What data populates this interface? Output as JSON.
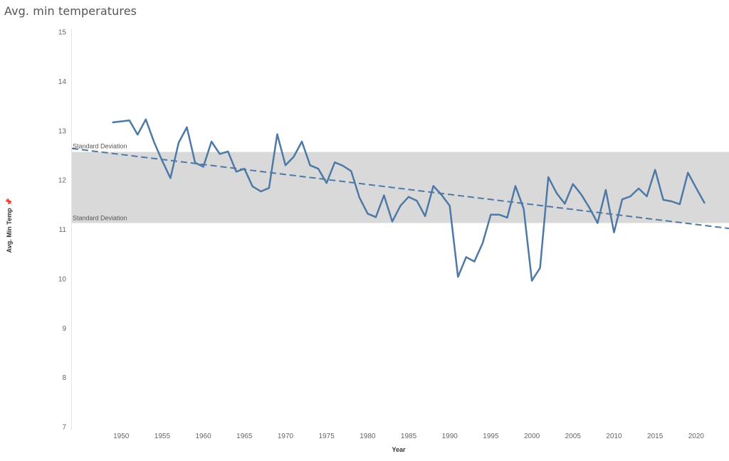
{
  "title": "Avg. min temperatures",
  "chart_data": {
    "type": "line",
    "title": "Avg. min temperatures",
    "xlabel": "Year",
    "ylabel": "Avg. Min Temp",
    "xlim": [
      1944,
      2024
    ],
    "ylim": [
      7,
      15
    ],
    "x_ticks": [
      "1950",
      "1955",
      "1960",
      "1965",
      "1970",
      "1975",
      "1980",
      "1985",
      "1990",
      "1995",
      "2000",
      "2005",
      "2010",
      "2015",
      "2020"
    ],
    "y_ticks": [
      "7",
      "8",
      "9",
      "10",
      "11",
      "12",
      "13",
      "14",
      "15"
    ],
    "grid": false,
    "series": [
      {
        "type": "line",
        "color": "#4e79a7",
        "x": [
          1949,
          1950,
          1951,
          1952,
          1953,
          1954,
          1955,
          1956,
          1957,
          1958,
          1959,
          1960,
          1961,
          1962,
          1963,
          1964,
          1965,
          1966,
          1967,
          1968,
          1969,
          1970,
          1971,
          1972,
          1973,
          1974,
          1975,
          1976,
          1977,
          1978,
          1979,
          1980,
          1981,
          1982,
          1983,
          1984,
          1985,
          1986,
          1987,
          1988,
          1989,
          1990,
          1991,
          1992,
          1993,
          1994,
          1995,
          1996,
          1997,
          1998,
          1999,
          2000,
          2001,
          2002,
          2003,
          2004,
          2005,
          2006,
          2007,
          2008,
          2009,
          2010,
          2011,
          2012,
          2013,
          2014,
          2015,
          2016,
          2017,
          2018,
          2019,
          2020,
          2021
        ],
        "values": [
          13.17,
          13.19,
          13.21,
          12.92,
          13.23,
          12.77,
          12.39,
          12.04,
          12.76,
          13.07,
          12.35,
          12.27,
          12.78,
          12.53,
          12.58,
          12.17,
          12.23,
          11.87,
          11.77,
          11.84,
          12.93,
          12.3,
          12.47,
          12.78,
          12.3,
          12.23,
          11.94,
          12.36,
          12.29,
          12.18,
          11.65,
          11.32,
          11.25,
          11.69,
          11.16,
          11.48,
          11.66,
          11.58,
          11.27,
          11.88,
          11.7,
          11.48,
          10.04,
          10.44,
          10.35,
          10.72,
          11.3,
          11.3,
          11.24,
          11.88,
          11.42,
          9.96,
          10.22,
          12.06,
          11.74,
          11.52,
          11.92,
          11.71,
          11.44,
          11.13,
          11.8,
          10.94,
          11.61,
          11.67,
          11.83,
          11.67,
          12.21,
          11.6,
          11.57,
          11.51,
          12.15,
          11.84,
          11.54
        ]
      },
      {
        "type": "trend",
        "style": "dashed",
        "color": "#4e79a7",
        "x": [
          1944,
          2024
        ],
        "values": [
          12.64,
          11.02
        ]
      }
    ],
    "reference_band": {
      "low": 11.13,
      "high": 12.57,
      "color": "#d9d9d9",
      "labels": [
        "Standard Deviation",
        "Standard Deviation"
      ]
    }
  }
}
